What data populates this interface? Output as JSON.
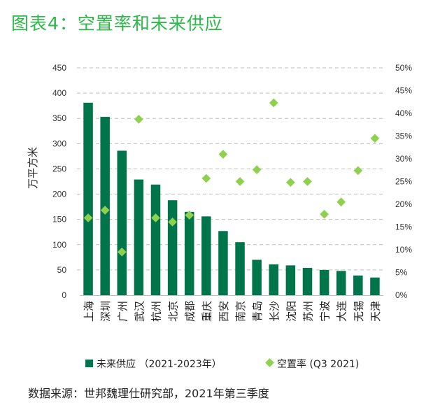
{
  "title": "图表4：空置率和未来供应",
  "source": "数据来源：世邦魏理仕研究部，2021年第三季度",
  "colors": {
    "title": "#2db84a",
    "bar": "#00744a",
    "marker": "#8fd14f",
    "grid": "#bfbfbf"
  },
  "chart_data": {
    "type": "bar",
    "categories": [
      "上海",
      "深圳",
      "广州",
      "武汉",
      "杭州",
      "北京",
      "成都",
      "重庆",
      "西安",
      "南京",
      "青岛",
      "长沙",
      "沈阳",
      "苏州",
      "宁波",
      "大连",
      "无锡",
      "天津"
    ],
    "series": [
      {
        "name": "未来供应 （2021-2023年）",
        "type": "bar",
        "axis": "left",
        "values": [
          381,
          353,
          286,
          229,
          219,
          188,
          165,
          156,
          127,
          105,
          70,
          61,
          59,
          54,
          50,
          48,
          39,
          35
        ]
      },
      {
        "name": "空置率 (Q3 2021)",
        "type": "scatter",
        "axis": "right",
        "values": [
          17.0,
          18.7,
          9.5,
          38.7,
          17.0,
          16.1,
          17.6,
          25.7,
          31.0,
          25.0,
          27.6,
          42.3,
          24.8,
          25.0,
          17.8,
          20.5,
          27.4,
          34.5
        ]
      }
    ],
    "ylabel": "万平方米",
    "ylim": [
      0,
      450
    ],
    "yticks": [
      "0",
      "50",
      "100",
      "150",
      "200",
      "250",
      "300",
      "350",
      "400",
      "450"
    ],
    "y2lim": [
      0,
      50
    ],
    "y2ticks": [
      "0%",
      "5%",
      "10%",
      "15%",
      "20%",
      "25%",
      "30%",
      "35%",
      "40%",
      "45%",
      "50%"
    ],
    "grid": true,
    "legend_position": "bottom"
  }
}
